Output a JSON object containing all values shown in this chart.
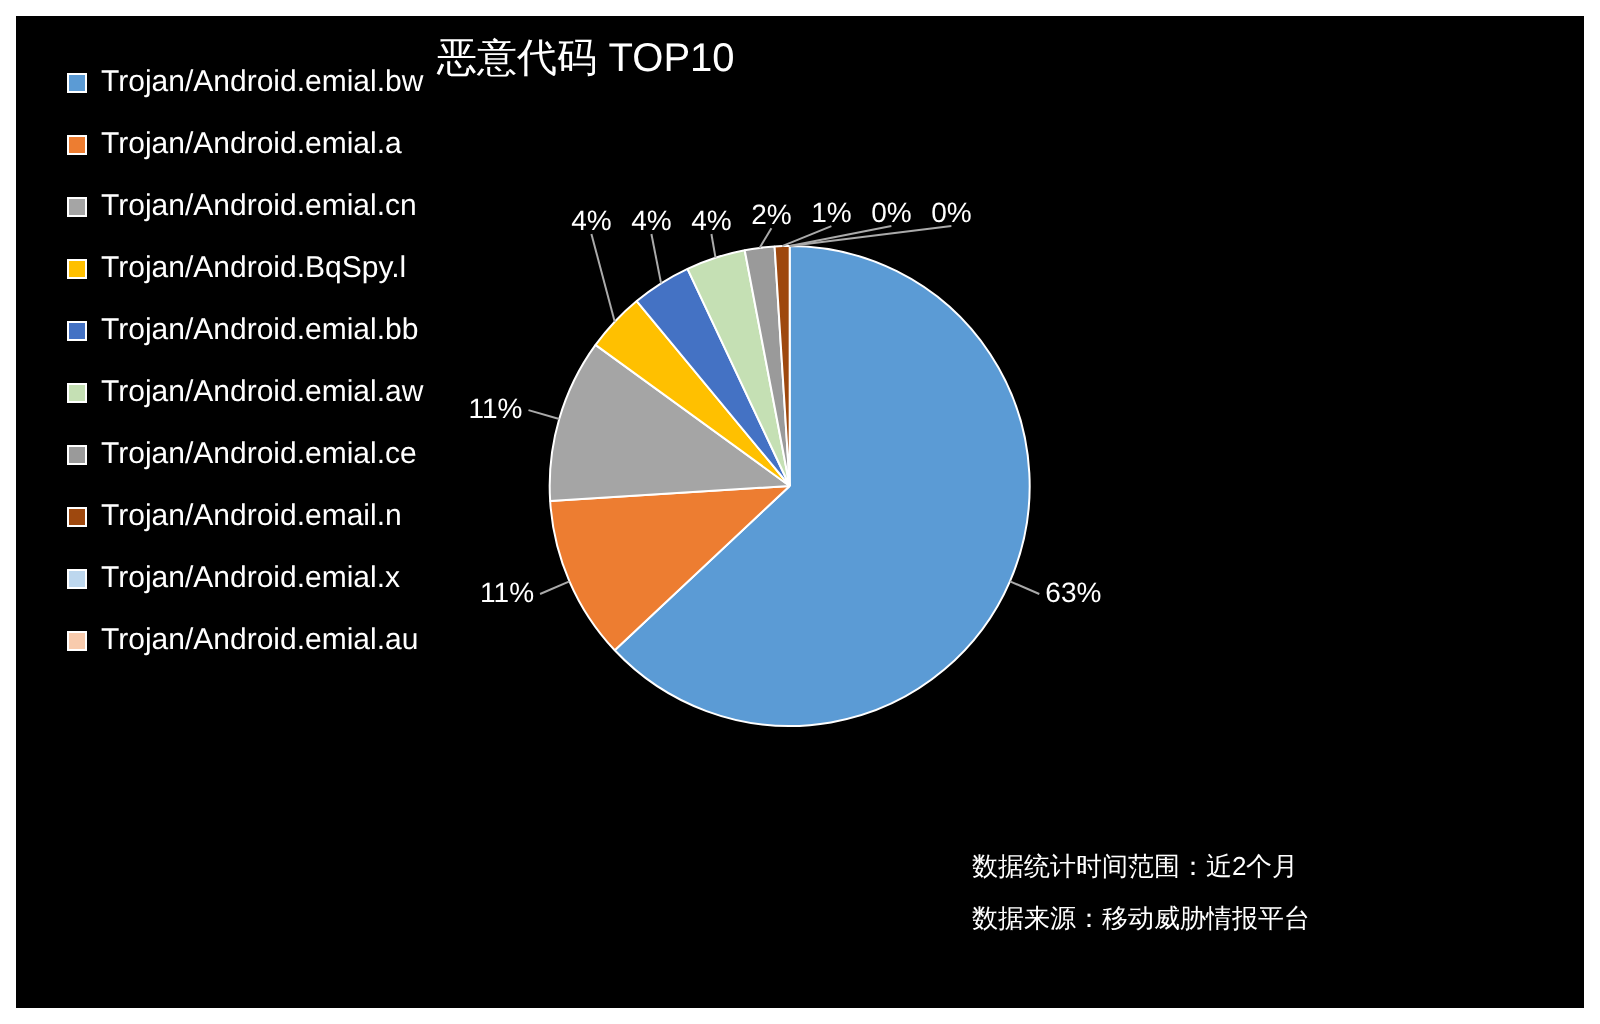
{
  "chart_data": {
    "type": "pie",
    "title": "恶意代码 TOP10",
    "categories": [
      "Trojan/Android.emial.bw",
      "Trojan/Android.emial.a",
      "Trojan/Android.emial.cn",
      "Trojan/Android.BqSpy.l",
      "Trojan/Android.emial.bb",
      "Trojan/Android.emial.aw",
      "Trojan/Android.emial.ce",
      "Trojan/Android.email.n",
      "Trojan/Android.emial.x",
      "Trojan/Android.emial.au"
    ],
    "values": [
      63,
      11,
      11,
      4,
      4,
      4,
      2,
      1,
      0,
      0
    ],
    "colors": [
      "#5b9bd5",
      "#ed7d31",
      "#a5a5a5",
      "#ffc000",
      "#4472c4",
      "#c5e0b4",
      "#9a9a9a",
      "#9e480e",
      "#bdd7ee",
      "#f8cbad"
    ],
    "value_labels": [
      "63%",
      "11%",
      "11%",
      "4%",
      "4%",
      "4%",
      "2%",
      "1%",
      "0%",
      "0%"
    ],
    "legend": "left",
    "annotations": [
      "数据统计时间范围：近2个月",
      "数据来源：移动威胁情报平台"
    ]
  }
}
